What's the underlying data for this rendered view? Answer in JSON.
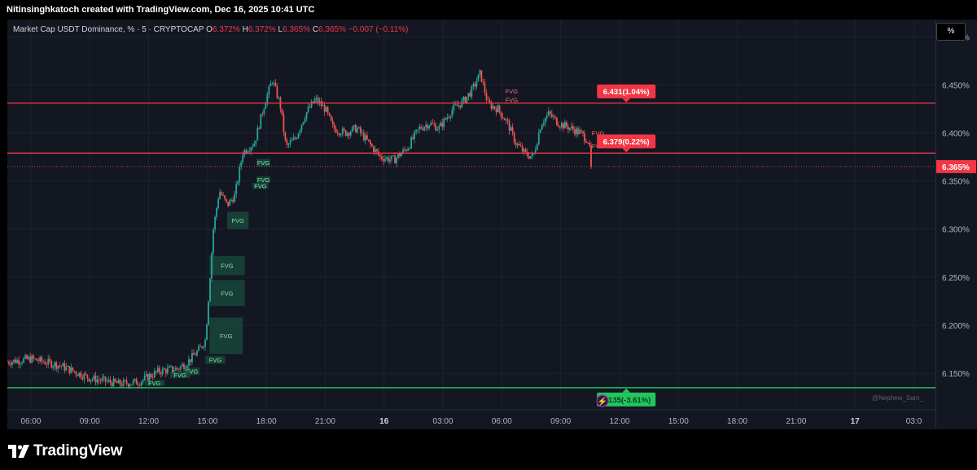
{
  "header": {
    "credit": "Nitinsinghkatoch created with TradingView.com, Dec 16, 2025 10:41 UTC"
  },
  "legend": {
    "symbol": "Market Cap USDT Dominance, % · 5 · CRYPTOCAP",
    "o_label": "O",
    "o_value": "6.372%",
    "h_label": "H",
    "h_value": "6.372%",
    "l_label": "L",
    "l_value": "6.365%",
    "c_label": "C",
    "c_value": "6.365%",
    "change": "−0.007 (−0.11%)"
  },
  "scale_button": "%",
  "watermark": "@Nephew_Sam_",
  "footer": {
    "brand": "TradingView"
  },
  "colors": {
    "background": "#131722",
    "up": "#26a69a",
    "down": "#ef5350",
    "resistance": "#f23645",
    "support": "#22c55e",
    "fvg_bull": "#1b4d3e",
    "fvg_bear": "#5c2430"
  },
  "chart_data": {
    "type": "candlestick",
    "symbol": "Market Cap USDT Dominance",
    "unit": "%",
    "timeframe": "5",
    "ylim": [
      6.112,
      6.518
    ],
    "y_ticks": [
      "6.500%",
      "6.450%",
      "6.400%",
      "6.350%",
      "6.300%",
      "6.250%",
      "6.200%",
      "6.150%"
    ],
    "y_tick_values": [
      6.5,
      6.45,
      6.4,
      6.35,
      6.3,
      6.25,
      6.2,
      6.15
    ],
    "x_ticks": [
      "06:00",
      "09:00",
      "12:00",
      "15:00",
      "18:00",
      "21:00",
      "16",
      "03:00",
      "06:00",
      "09:00",
      "12:00",
      "15:00",
      "18:00",
      "21:00",
      "17",
      "03:0"
    ],
    "x_tick_hours": [
      6,
      9,
      12,
      15,
      18,
      21,
      24,
      27,
      30,
      33,
      36,
      39,
      42,
      45,
      48,
      51
    ],
    "x_range_hours": [
      4.8,
      52.1
    ],
    "last_time_hours": 34.6,
    "price_path": [
      [
        4.8,
        6.162
      ],
      [
        6.0,
        6.165
      ],
      [
        7.5,
        6.158
      ],
      [
        9.0,
        6.145
      ],
      [
        10.5,
        6.139
      ],
      [
        11.5,
        6.141
      ],
      [
        12.5,
        6.152
      ],
      [
        13.5,
        6.155
      ],
      [
        14.0,
        6.162
      ],
      [
        14.6,
        6.175
      ],
      [
        14.9,
        6.185
      ],
      [
        15.3,
        6.3
      ],
      [
        15.6,
        6.34
      ],
      [
        16.0,
        6.325
      ],
      [
        16.4,
        6.335
      ],
      [
        16.8,
        6.38
      ],
      [
        17.4,
        6.39
      ],
      [
        17.9,
        6.43
      ],
      [
        18.3,
        6.455
      ],
      [
        18.7,
        6.43
      ],
      [
        19.0,
        6.385
      ],
      [
        19.5,
        6.395
      ],
      [
        20.0,
        6.42
      ],
      [
        20.5,
        6.435
      ],
      [
        21.0,
        6.425
      ],
      [
        21.4,
        6.405
      ],
      [
        22.0,
        6.4
      ],
      [
        22.6,
        6.405
      ],
      [
        23.2,
        6.39
      ],
      [
        23.8,
        6.375
      ],
      [
        24.5,
        6.372
      ],
      [
        25.2,
        6.385
      ],
      [
        25.8,
        6.405
      ],
      [
        26.3,
        6.41
      ],
      [
        26.8,
        6.405
      ],
      [
        27.5,
        6.425
      ],
      [
        28.0,
        6.432
      ],
      [
        28.5,
        6.445
      ],
      [
        28.9,
        6.462
      ],
      [
        29.3,
        6.43
      ],
      [
        29.8,
        6.425
      ],
      [
        30.3,
        6.41
      ],
      [
        30.7,
        6.39
      ],
      [
        31.2,
        6.378
      ],
      [
        31.6,
        6.375
      ],
      [
        32.0,
        6.41
      ],
      [
        32.4,
        6.42
      ],
      [
        32.9,
        6.41
      ],
      [
        33.5,
        6.405
      ],
      [
        34.0,
        6.4
      ],
      [
        34.4,
        6.392
      ],
      [
        34.6,
        6.365
      ]
    ],
    "horizontal_lines": [
      {
        "price": 6.431,
        "label": "6.431(1.04%)",
        "style": "resistance"
      },
      {
        "price": 6.379,
        "label": "6.379(0.22%)",
        "style": "resistance"
      },
      {
        "price": 6.135,
        "label": "6.135(-3.61%)",
        "style": "support"
      }
    ],
    "last_price": {
      "label": "6.365%",
      "value": 6.365
    },
    "fvg_zones": [
      {
        "label": "FVG",
        "t0": 17.5,
        "t1": 18.2,
        "y0": 6.365,
        "y1": 6.373,
        "dir": "bull"
      },
      {
        "label": "FVG",
        "t0": 17.5,
        "t1": 18.2,
        "y0": 6.348,
        "y1": 6.355,
        "dir": "bull"
      },
      {
        "label": "FVG",
        "t0": 17.3,
        "t1": 18.1,
        "y0": 6.342,
        "y1": 6.348,
        "dir": "bull"
      },
      {
        "label": "FVG",
        "t0": 16.0,
        "t1": 17.1,
        "y0": 6.3,
        "y1": 6.318,
        "dir": "bull"
      },
      {
        "label": "FVG",
        "t0": 15.1,
        "t1": 16.9,
        "y0": 6.252,
        "y1": 6.272,
        "dir": "bull"
      },
      {
        "label": "FVG",
        "t0": 15.1,
        "t1": 16.9,
        "y0": 6.22,
        "y1": 6.247,
        "dir": "bull"
      },
      {
        "label": "FVG",
        "t0": 15.1,
        "t1": 16.8,
        "y0": 6.17,
        "y1": 6.208,
        "dir": "bull"
      },
      {
        "label": "FVG",
        "t0": 14.9,
        "t1": 15.9,
        "y0": 6.16,
        "y1": 6.168,
        "dir": "bull"
      },
      {
        "label": "FVG",
        "t0": 13.8,
        "t1": 14.6,
        "y0": 6.148,
        "y1": 6.156,
        "dir": "bull"
      },
      {
        "label": "FVG",
        "t0": 13.1,
        "t1": 14.1,
        "y0": 6.145,
        "y1": 6.152,
        "dir": "bull"
      },
      {
        "label": "FVG",
        "t0": 11.8,
        "t1": 12.8,
        "y0": 6.137,
        "y1": 6.143,
        "dir": "bull"
      },
      {
        "label": "FVG",
        "t0": 29.6,
        "t1": 31.4,
        "y0": 6.44,
        "y1": 6.447,
        "dir": "bear"
      },
      {
        "label": "FVG",
        "t0": 29.6,
        "t1": 31.4,
        "y0": 6.431,
        "y1": 6.438,
        "dir": "bear"
      },
      {
        "label": "FVG",
        "t0": 34.3,
        "t1": 35.5,
        "y0": 6.397,
        "y1": 6.403,
        "dir": "bear"
      },
      {
        "label": "FVG",
        "t0": 34.3,
        "t1": 35.5,
        "y0": 6.383,
        "y1": 6.39,
        "dir": "bear"
      }
    ]
  }
}
